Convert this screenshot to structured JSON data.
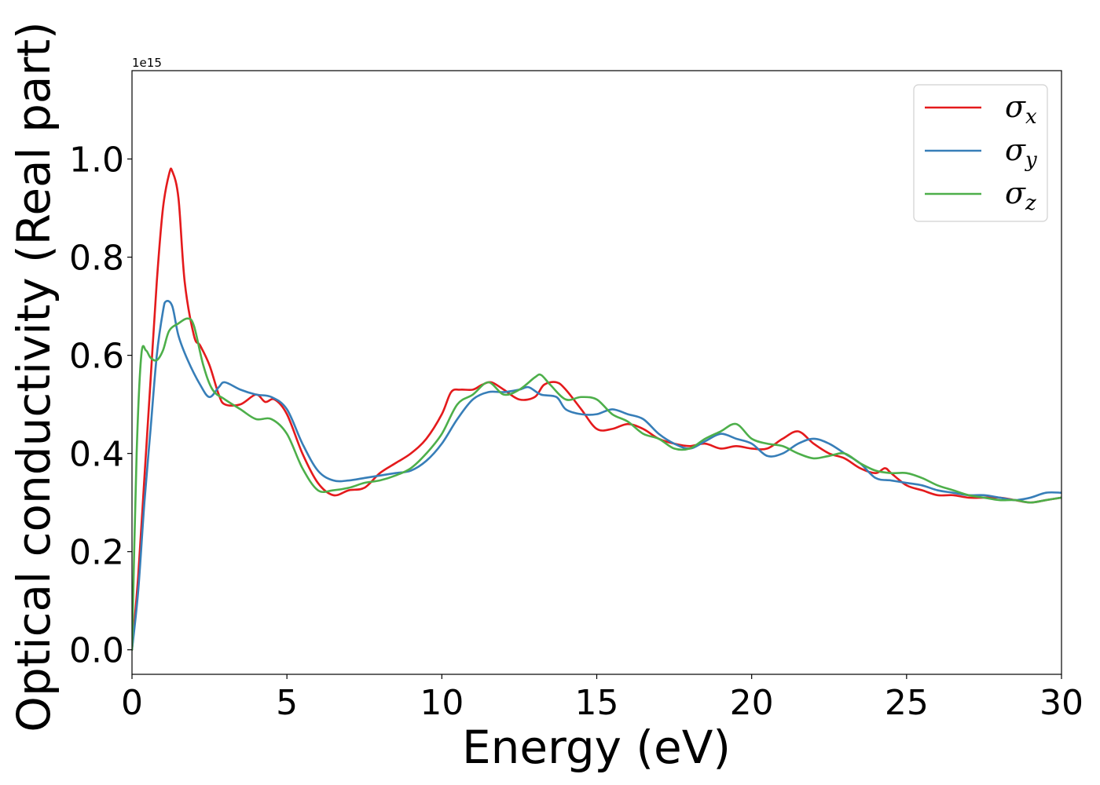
{
  "chart_data": {
    "type": "line",
    "title": "",
    "xlabel": "Energy (eV)",
    "ylabel": "Optical conductivity (Real part)",
    "y_offset_label": "1e15",
    "xlim": [
      0,
      30
    ],
    "ylim": [
      -0.05,
      1.18
    ],
    "xticks": [
      0,
      5,
      10,
      15,
      20,
      25,
      30
    ],
    "xtick_labels": [
      "0",
      "5",
      "10",
      "15",
      "20",
      "25",
      "30"
    ],
    "yticks": [
      0.0,
      0.2,
      0.4,
      0.6,
      0.8,
      1.0
    ],
    "ytick_labels": [
      "0.0",
      "0.2",
      "0.4",
      "0.6",
      "0.8",
      "1.0"
    ],
    "grid": false,
    "legend_position": "top-right",
    "series": [
      {
        "name": "σx",
        "legend_symbol": "σ",
        "legend_sub": "x",
        "color": "#e41a1c",
        "x": [
          0,
          0.2,
          0.4,
          0.6,
          0.8,
          1.0,
          1.2,
          1.3,
          1.5,
          1.7,
          2.0,
          2.2,
          2.5,
          2.8,
          3.0,
          3.5,
          4.0,
          4.3,
          4.6,
          5.0,
          5.5,
          6.0,
          6.5,
          7.0,
          7.5,
          8.0,
          8.5,
          9.0,
          9.5,
          10.0,
          10.3,
          10.6,
          11.0,
          11.3,
          11.6,
          12.0,
          12.5,
          13.0,
          13.3,
          13.7,
          14.0,
          14.5,
          15.0,
          15.5,
          16.0,
          16.5,
          17.0,
          17.5,
          18.0,
          18.5,
          19.0,
          19.5,
          20.0,
          20.5,
          21.0,
          21.5,
          22.0,
          22.5,
          23.0,
          23.5,
          24.0,
          24.3,
          24.5,
          25.0,
          25.5,
          26.0,
          26.5,
          27.0,
          27.5,
          28.0,
          28.5,
          29.0,
          29.5,
          30.0
        ],
        "y": [
          0.0,
          0.15,
          0.35,
          0.55,
          0.75,
          0.9,
          0.97,
          0.975,
          0.92,
          0.75,
          0.64,
          0.62,
          0.58,
          0.52,
          0.5,
          0.5,
          0.52,
          0.505,
          0.51,
          0.48,
          0.4,
          0.34,
          0.315,
          0.325,
          0.33,
          0.36,
          0.38,
          0.4,
          0.43,
          0.48,
          0.525,
          0.53,
          0.53,
          0.54,
          0.545,
          0.53,
          0.51,
          0.515,
          0.54,
          0.545,
          0.53,
          0.49,
          0.45,
          0.45,
          0.46,
          0.45,
          0.43,
          0.42,
          0.415,
          0.42,
          0.41,
          0.415,
          0.41,
          0.41,
          0.43,
          0.445,
          0.42,
          0.4,
          0.39,
          0.37,
          0.36,
          0.37,
          0.36,
          0.335,
          0.325,
          0.315,
          0.315,
          0.31,
          0.31,
          0.31,
          0.305,
          0.3,
          0.305,
          0.31
        ]
      },
      {
        "name": "σy",
        "legend_symbol": "σ",
        "legend_sub": "y",
        "color": "#377eb8",
        "x": [
          0,
          0.2,
          0.4,
          0.6,
          0.8,
          1.0,
          1.1,
          1.3,
          1.5,
          1.8,
          2.2,
          2.5,
          2.8,
          3.0,
          3.5,
          4.0,
          4.5,
          5.0,
          5.5,
          6.0,
          6.5,
          7.0,
          7.5,
          8.0,
          8.5,
          9.0,
          9.5,
          10.0,
          10.5,
          11.0,
          11.5,
          12.0,
          12.5,
          12.8,
          13.2,
          13.7,
          14.0,
          14.5,
          15.0,
          15.5,
          16.0,
          16.5,
          17.0,
          17.5,
          18.0,
          18.5,
          19.0,
          19.5,
          20.0,
          20.5,
          21.0,
          21.5,
          22.0,
          22.5,
          23.0,
          23.5,
          24.0,
          24.5,
          25.0,
          25.5,
          26.0,
          26.5,
          27.0,
          27.5,
          28.0,
          28.5,
          29.0,
          29.5,
          30.0
        ],
        "y": [
          0.0,
          0.12,
          0.3,
          0.45,
          0.6,
          0.69,
          0.71,
          0.7,
          0.64,
          0.59,
          0.54,
          0.515,
          0.535,
          0.545,
          0.53,
          0.52,
          0.515,
          0.49,
          0.42,
          0.365,
          0.345,
          0.345,
          0.35,
          0.355,
          0.36,
          0.365,
          0.385,
          0.42,
          0.47,
          0.51,
          0.525,
          0.525,
          0.53,
          0.535,
          0.52,
          0.515,
          0.49,
          0.48,
          0.48,
          0.49,
          0.48,
          0.47,
          0.44,
          0.42,
          0.41,
          0.425,
          0.44,
          0.43,
          0.42,
          0.395,
          0.4,
          0.42,
          0.43,
          0.42,
          0.4,
          0.38,
          0.35,
          0.345,
          0.34,
          0.335,
          0.325,
          0.32,
          0.315,
          0.315,
          0.31,
          0.305,
          0.31,
          0.32,
          0.32
        ]
      },
      {
        "name": "σz",
        "legend_symbol": "σ",
        "legend_sub": "z",
        "color": "#4daf4a",
        "x": [
          0,
          0.15,
          0.3,
          0.45,
          0.6,
          0.8,
          1.0,
          1.2,
          1.5,
          1.8,
          2.0,
          2.3,
          2.6,
          3.0,
          3.5,
          4.0,
          4.5,
          5.0,
          5.5,
          6.0,
          6.5,
          7.0,
          7.5,
          8.0,
          8.5,
          9.0,
          9.5,
          10.0,
          10.5,
          11.0,
          11.5,
          12.0,
          12.5,
          13.0,
          13.2,
          13.5,
          14.0,
          14.5,
          15.0,
          15.5,
          16.0,
          16.5,
          17.0,
          17.5,
          18.0,
          18.5,
          19.0,
          19.5,
          20.0,
          20.5,
          21.0,
          21.5,
          22.0,
          22.5,
          23.0,
          23.5,
          24.0,
          24.5,
          25.0,
          25.5,
          26.0,
          26.5,
          27.0,
          27.5,
          28.0,
          28.5,
          29.0,
          29.5,
          30.0
        ],
        "y": [
          0.0,
          0.4,
          0.6,
          0.61,
          0.595,
          0.59,
          0.61,
          0.65,
          0.665,
          0.675,
          0.66,
          0.58,
          0.53,
          0.51,
          0.49,
          0.47,
          0.47,
          0.44,
          0.37,
          0.325,
          0.325,
          0.33,
          0.34,
          0.345,
          0.355,
          0.37,
          0.4,
          0.44,
          0.5,
          0.52,
          0.545,
          0.52,
          0.53,
          0.555,
          0.56,
          0.54,
          0.51,
          0.515,
          0.51,
          0.48,
          0.465,
          0.44,
          0.43,
          0.41,
          0.41,
          0.43,
          0.445,
          0.46,
          0.43,
          0.42,
          0.415,
          0.4,
          0.39,
          0.395,
          0.4,
          0.38,
          0.365,
          0.36,
          0.36,
          0.35,
          0.335,
          0.325,
          0.315,
          0.31,
          0.305,
          0.305,
          0.3,
          0.305,
          0.31
        ]
      }
    ]
  }
}
